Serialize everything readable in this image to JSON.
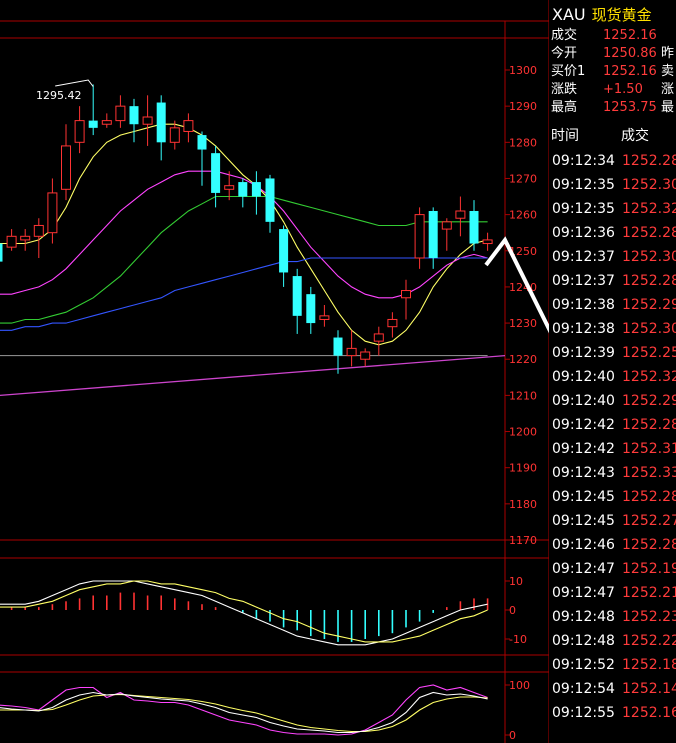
{
  "chart_data": {
    "type": "candlestick",
    "price_axis": {
      "min": 1170,
      "max": 1300,
      "ticks": [
        1300,
        1290,
        1280,
        1270,
        1260,
        1250,
        1240,
        1230,
        1220,
        1210,
        1200,
        1190,
        1180,
        1170
      ]
    },
    "high_annotation": "1295.42",
    "candles": [
      [
        1252,
        1258,
        1247,
        1245,
        "down"
      ],
      [
        1251,
        1256,
        1254,
        1250,
        "up"
      ],
      [
        1253,
        1256,
        1254,
        1250,
        "up"
      ],
      [
        1254,
        1259,
        1257,
        1248,
        "up"
      ],
      [
        1255,
        1270,
        1266,
        1252,
        "up"
      ],
      [
        1267,
        1285,
        1279,
        1264,
        "up"
      ],
      [
        1280,
        1290,
        1286,
        1277,
        "up"
      ],
      [
        1286,
        1296,
        1284,
        1282,
        "down"
      ],
      [
        1285,
        1288,
        1286,
        1284,
        "up"
      ],
      [
        1286,
        1293,
        1290,
        1284,
        "up"
      ],
      [
        1290,
        1292,
        1285,
        1280,
        "down"
      ],
      [
        1285,
        1293,
        1287,
        1279,
        "up"
      ],
      [
        1291,
        1293,
        1280,
        1275,
        "down"
      ],
      [
        1280,
        1286,
        1284,
        1278,
        "up"
      ],
      [
        1283,
        1288,
        1286,
        1280,
        "up"
      ],
      [
        1282,
        1283,
        1278,
        1268,
        "down"
      ],
      [
        1277,
        1279,
        1266,
        1262,
        "down"
      ],
      [
        1267,
        1272,
        1268,
        1264,
        "up"
      ],
      [
        1269,
        1270,
        1265,
        1262,
        "down"
      ],
      [
        1269,
        1272,
        1265,
        1260,
        "down"
      ],
      [
        1270,
        1271,
        1258,
        1255,
        "down"
      ],
      [
        1256,
        1257,
        1244,
        1240,
        "down"
      ],
      [
        1243,
        1245,
        1232,
        1227,
        "down"
      ],
      [
        1238,
        1240,
        1230,
        1227,
        "down"
      ],
      [
        1232,
        1235,
        1231,
        1229,
        "up"
      ],
      [
        1226,
        1228,
        1221,
        1216,
        "down"
      ],
      [
        1221,
        1228,
        1223,
        1218,
        "up"
      ],
      [
        1220,
        1223,
        1222,
        1218,
        "up"
      ],
      [
        1225,
        1229,
        1227,
        1221,
        "up"
      ],
      [
        1229,
        1233,
        1231,
        1226,
        "up"
      ],
      [
        1237,
        1242,
        1239,
        1231,
        "up"
      ],
      [
        1248,
        1262,
        1260,
        1245,
        "up"
      ],
      [
        1261,
        1262,
        1248,
        1245,
        "down"
      ],
      [
        1256,
        1259,
        1258,
        1250,
        "up"
      ],
      [
        1259,
        1265,
        1261,
        1254,
        "up"
      ],
      [
        1261,
        1264,
        1252,
        1250,
        "down"
      ],
      [
        1253,
        1255,
        1252,
        1250,
        "up"
      ]
    ],
    "ma_lines": [
      {
        "color": "#ffff66",
        "values": [
          1252,
          1252,
          1252,
          1253,
          1256,
          1262,
          1270,
          1276,
          1280,
          1282,
          1283,
          1284,
          1285,
          1285,
          1284,
          1282,
          1279,
          1275,
          1271,
          1268,
          1264,
          1258,
          1251,
          1245,
          1239,
          1233,
          1228,
          1225,
          1224,
          1225,
          1228,
          1233,
          1240,
          1245,
          1249,
          1252,
          1253
        ]
      },
      {
        "color": "#ff44ff",
        "values": [
          1238,
          1238,
          1239,
          1240,
          1242,
          1245,
          1249,
          1253,
          1257,
          1261,
          1264,
          1267,
          1269,
          1271,
          1272,
          1272,
          1272,
          1271,
          1270,
          1268,
          1265,
          1261,
          1256,
          1251,
          1247,
          1243,
          1240,
          1238,
          1237,
          1237,
          1238,
          1240,
          1243,
          1246,
          1248,
          1249,
          1248
        ]
      },
      {
        "color": "#33cc33",
        "values": [
          1230,
          1230,
          1231,
          1231,
          1232,
          1233,
          1235,
          1237,
          1240,
          1243,
          1247,
          1251,
          1255,
          1258,
          1261,
          1263,
          1265,
          1265,
          1265,
          1265,
          1265,
          1264,
          1263,
          1262,
          1261,
          1260,
          1259,
          1258,
          1257,
          1257,
          1257,
          1258,
          1258,
          1258,
          1258,
          1258,
          1258
        ]
      },
      {
        "color": "#3355ff",
        "values": [
          1228,
          1228,
          1229,
          1229,
          1230,
          1230,
          1231,
          1232,
          1233,
          1234,
          1235,
          1236,
          1237,
          1239,
          1240,
          1241,
          1242,
          1243,
          1244,
          1245,
          1246,
          1247,
          1247,
          1248,
          1248,
          1248,
          1248,
          1248,
          1248,
          1248,
          1248,
          1248,
          1248,
          1248,
          1248,
          1248,
          1248
        ]
      },
      {
        "color": "#888888",
        "values": [
          1221,
          1221,
          1221,
          1221,
          1221,
          1221,
          1221,
          1221,
          1221,
          1221,
          1221,
          1221,
          1221,
          1221,
          1221,
          1221,
          1221,
          1221,
          1221,
          1221,
          1221,
          1221,
          1221,
          1221,
          1221,
          1221,
          1221,
          1221,
          1221,
          1221,
          1221,
          1221,
          1221,
          1221,
          1221,
          1221,
          1221
        ]
      }
    ],
    "trend_line": {
      "color": "#cc44cc",
      "from": 1210,
      "to": 1221
    },
    "macd": {
      "axis_ticks": [
        "10",
        "0",
        "-10"
      ],
      "hist": [
        1,
        1,
        1,
        1,
        2,
        3,
        4,
        5,
        5,
        6,
        6,
        5,
        5,
        4,
        3,
        2,
        1,
        0,
        -1,
        -3,
        -4,
        -6,
        -7,
        -9,
        -10,
        -11,
        -11,
        -10,
        -9,
        -8,
        -6,
        -4,
        -1,
        1,
        3,
        4,
        4
      ],
      "dif": [
        2,
        2,
        2,
        3,
        5,
        7,
        9,
        10,
        10,
        10,
        10,
        9,
        8,
        7,
        6,
        5,
        3,
        1,
        -1,
        -3,
        -5,
        -7,
        -9,
        -10,
        -11,
        -12,
        -12,
        -12,
        -11,
        -10,
        -8,
        -6,
        -4,
        -2,
        0,
        1,
        2
      ],
      "dea": [
        1,
        1,
        1,
        2,
        3,
        5,
        7,
        8,
        9,
        9,
        10,
        10,
        9,
        9,
        8,
        7,
        6,
        4,
        3,
        1,
        -1,
        -3,
        -4,
        -6,
        -8,
        -9,
        -10,
        -11,
        -11,
        -11,
        -10,
        -9,
        -7,
        -5,
        -3,
        -2,
        0
      ]
    },
    "kdj": {
      "axis_ticks": [
        "100",
        "0"
      ],
      "k": [
        55,
        52,
        50,
        48,
        55,
        70,
        80,
        85,
        80,
        82,
        78,
        75,
        72,
        70,
        68,
        62,
        55,
        45,
        40,
        35,
        25,
        18,
        12,
        10,
        8,
        5,
        5,
        8,
        15,
        25,
        45,
        75,
        85,
        80,
        82,
        78,
        72
      ],
      "d": [
        50,
        50,
        50,
        49,
        51,
        60,
        70,
        78,
        80,
        81,
        79,
        77,
        75,
        73,
        71,
        67,
        62,
        55,
        49,
        44,
        36,
        28,
        20,
        15,
        12,
        9,
        7,
        7,
        10,
        17,
        30,
        50,
        65,
        72,
        76,
        76,
        74
      ],
      "j": [
        60,
        58,
        55,
        50,
        70,
        90,
        95,
        95,
        75,
        85,
        70,
        68,
        65,
        65,
        60,
        50,
        40,
        30,
        25,
        20,
        10,
        5,
        2,
        2,
        2,
        0,
        2,
        10,
        25,
        40,
        70,
        95,
        100,
        90,
        95,
        85,
        75
      ]
    }
  },
  "quote": {
    "code": "XAU",
    "name": "现货黄金",
    "rows": [
      {
        "label": "成交",
        "value": "1252.16",
        "cut": ""
      },
      {
        "label": "今开",
        "value": "1250.86",
        "cut": "昨"
      },
      {
        "label": "买价1",
        "value": "1252.16",
        "cut": "卖"
      },
      {
        "label": "涨跌",
        "value": "+1.50",
        "cut": "涨"
      },
      {
        "label": "最高",
        "value": "1253.75",
        "cut": "最"
      }
    ]
  },
  "ticks_table": {
    "headers": [
      "时间",
      "成交"
    ],
    "rows": [
      {
        "time": "09:12:34",
        "price": "1252.28"
      },
      {
        "time": "09:12:35",
        "price": "1252.30"
      },
      {
        "time": "09:12:35",
        "price": "1252.32"
      },
      {
        "time": "09:12:36",
        "price": "1252.28"
      },
      {
        "time": "09:12:37",
        "price": "1252.30"
      },
      {
        "time": "09:12:37",
        "price": "1252.28"
      },
      {
        "time": "09:12:38",
        "price": "1252.29"
      },
      {
        "time": "09:12:38",
        "price": "1252.30"
      },
      {
        "time": "09:12:39",
        "price": "1252.25"
      },
      {
        "time": "09:12:40",
        "price": "1252.32"
      },
      {
        "time": "09:12:40",
        "price": "1252.29"
      },
      {
        "time": "09:12:42",
        "price": "1252.28"
      },
      {
        "time": "09:12:42",
        "price": "1252.31"
      },
      {
        "time": "09:12:43",
        "price": "1252.33"
      },
      {
        "time": "09:12:45",
        "price": "1252.28"
      },
      {
        "time": "09:12:45",
        "price": "1252.27"
      },
      {
        "time": "09:12:46",
        "price": "1252.28"
      },
      {
        "time": "09:12:47",
        "price": "1252.19"
      },
      {
        "time": "09:12:47",
        "price": "1252.21"
      },
      {
        "time": "09:12:48",
        "price": "1252.23"
      },
      {
        "time": "09:12:48",
        "price": "1252.22"
      },
      {
        "time": "09:12:52",
        "price": "1252.18"
      },
      {
        "time": "09:12:54",
        "price": "1252.14"
      },
      {
        "time": "09:12:55",
        "price": "1252.16"
      }
    ]
  },
  "colors": {
    "up": "#ff3333",
    "down": "#33ffff",
    "grid": "#aa0000",
    "axis_text": "#ff3333"
  }
}
